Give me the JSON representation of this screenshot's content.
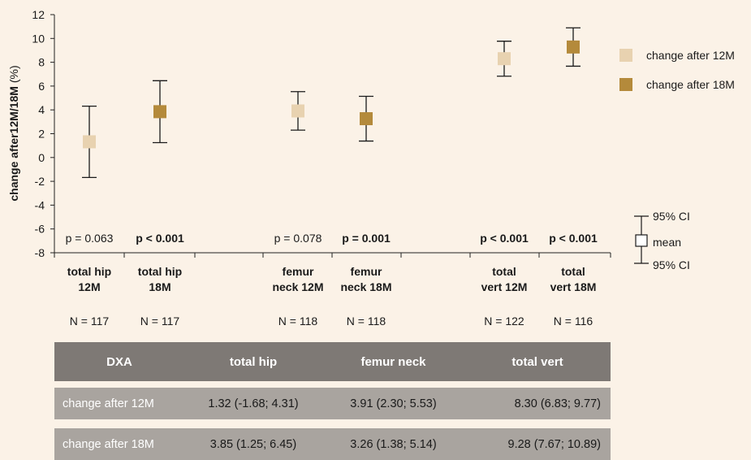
{
  "chart_data": {
    "type": "scatter",
    "ylabel_bold": "change  after12M/18M",
    "ylabel_unit": " (%)",
    "ylim": [
      -8,
      12
    ],
    "yticks": [
      -8,
      -6,
      -4,
      -2,
      0,
      2,
      4,
      6,
      8,
      10,
      12
    ],
    "categories": [
      {
        "line1": "total hip",
        "line2": "12M",
        "mean": 1.32,
        "lo": -1.68,
        "hi": 4.31,
        "series": 0,
        "p": "p = 0.063",
        "p_bold": false,
        "n": "N = 117"
      },
      {
        "line1": "total hip",
        "line2": "18M",
        "mean": 3.85,
        "lo": 1.25,
        "hi": 6.45,
        "series": 1,
        "p": "p < 0.001",
        "p_bold": true,
        "n": "N = 117"
      },
      {
        "line1": "femur",
        "line2": "neck 12M",
        "mean": 3.91,
        "lo": 2.3,
        "hi": 5.53,
        "series": 0,
        "p": "p = 0.078",
        "p_bold": false,
        "n": "N = 118"
      },
      {
        "line1": "femur",
        "line2": "neck 18M",
        "mean": 3.26,
        "lo": 1.38,
        "hi": 5.14,
        "series": 1,
        "p": "p = 0.001",
        "p_bold": true,
        "n": "N = 118"
      },
      {
        "line1": "total",
        "line2": "vert 12M",
        "mean": 8.3,
        "lo": 6.83,
        "hi": 9.77,
        "series": 0,
        "p": "p < 0.001",
        "p_bold": true,
        "n": "N = 122"
      },
      {
        "line1": "total",
        "line2": "vert 18M",
        "mean": 9.28,
        "lo": 7.67,
        "hi": 10.89,
        "series": 1,
        "p": "p < 0.001",
        "p_bold": true,
        "n": "N = 116"
      }
    ],
    "series": [
      {
        "name": "change after 12M",
        "color": "#e8d2b0"
      },
      {
        "name": "change after 18M",
        "color": "#b48a3b"
      }
    ],
    "ci_legend": {
      "upper": "95% CI",
      "mean": "mean",
      "lower": "95% CI"
    },
    "legend_position": "right"
  },
  "table": {
    "header": [
      "DXA",
      "total hip",
      "femur neck",
      "total vert"
    ],
    "rows": [
      [
        "change after 12M",
        "1.32 (-1.68; 4.31)",
        "3.91 (2.30; 5.53)",
        "8.30 (6.83; 9.77)"
      ],
      [
        "change after 18M",
        "3.85 (1.25; 6.45)",
        "3.26 (1.38; 5.14)",
        "9.28 (7.67; 10.89)"
      ]
    ]
  }
}
